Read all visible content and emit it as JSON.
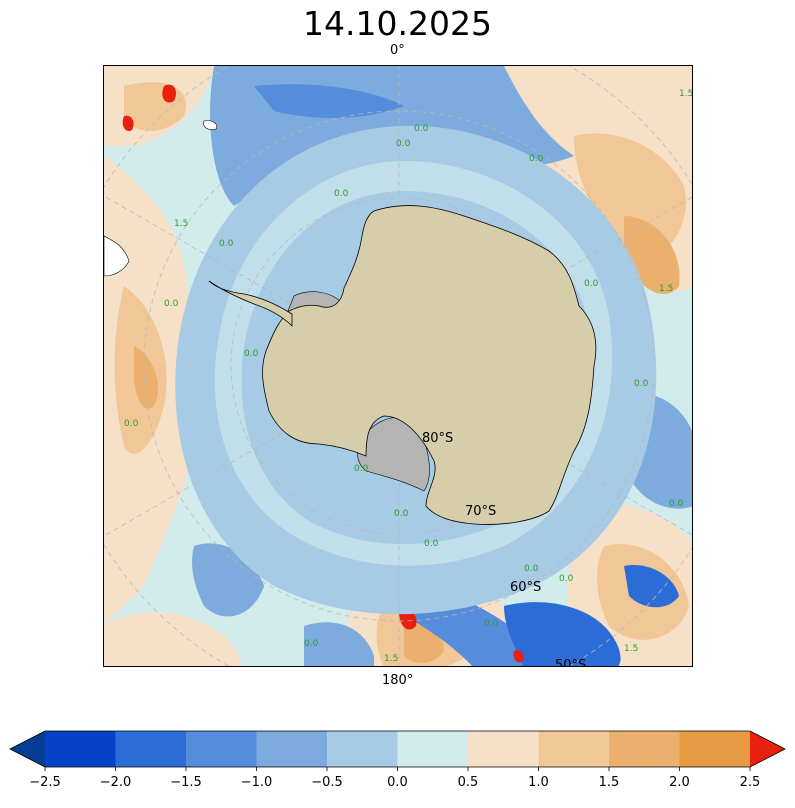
{
  "title": "14.10.2025",
  "map": {
    "projection": "south-polar-stereographic",
    "top_longitude_label": "0°",
    "bottom_longitude_label": "180°",
    "latitude_labels": [
      "80°S",
      "70°S",
      "60°S",
      "50°S"
    ],
    "contour_label_values": [
      "0.0",
      "1.5"
    ],
    "colors": {
      "ocean_near_zero": "#d2ecec",
      "ocean_slightly_negative": "#a7cae5",
      "land": "#d6cdaa",
      "ice_shelf": "#b4b4b4",
      "contour_label": "#2ca02c"
    }
  },
  "colorbar": {
    "ticks": [
      "−2.5",
      "−2.0",
      "−1.5",
      "−1.0",
      "−0.5",
      "0.0",
      "0.5",
      "1.0",
      "1.5",
      "2.0",
      "2.5"
    ],
    "bins": [
      {
        "from": -2.5,
        "to": -2.0,
        "color": "#0443c8"
      },
      {
        "from": -2.0,
        "to": -1.5,
        "color": "#2c6cd6"
      },
      {
        "from": -1.5,
        "to": -1.0,
        "color": "#558cdc"
      },
      {
        "from": -1.0,
        "to": -0.5,
        "color": "#7eabde"
      },
      {
        "from": -0.5,
        "to": 0.0,
        "color": "#a7cae5"
      },
      {
        "from": 0.0,
        "to": 0.5,
        "color": "#d2ecec"
      },
      {
        "from": 0.5,
        "to": 1.0,
        "color": "#f6e0c8"
      },
      {
        "from": 1.0,
        "to": 1.5,
        "color": "#f2c797"
      },
      {
        "from": 1.5,
        "to": 2.0,
        "color": "#ebb06e"
      },
      {
        "from": 2.0,
        "to": 2.5,
        "color": "#e69a42"
      }
    ],
    "under_color": "#063d94",
    "over_color": "#e8200e"
  }
}
